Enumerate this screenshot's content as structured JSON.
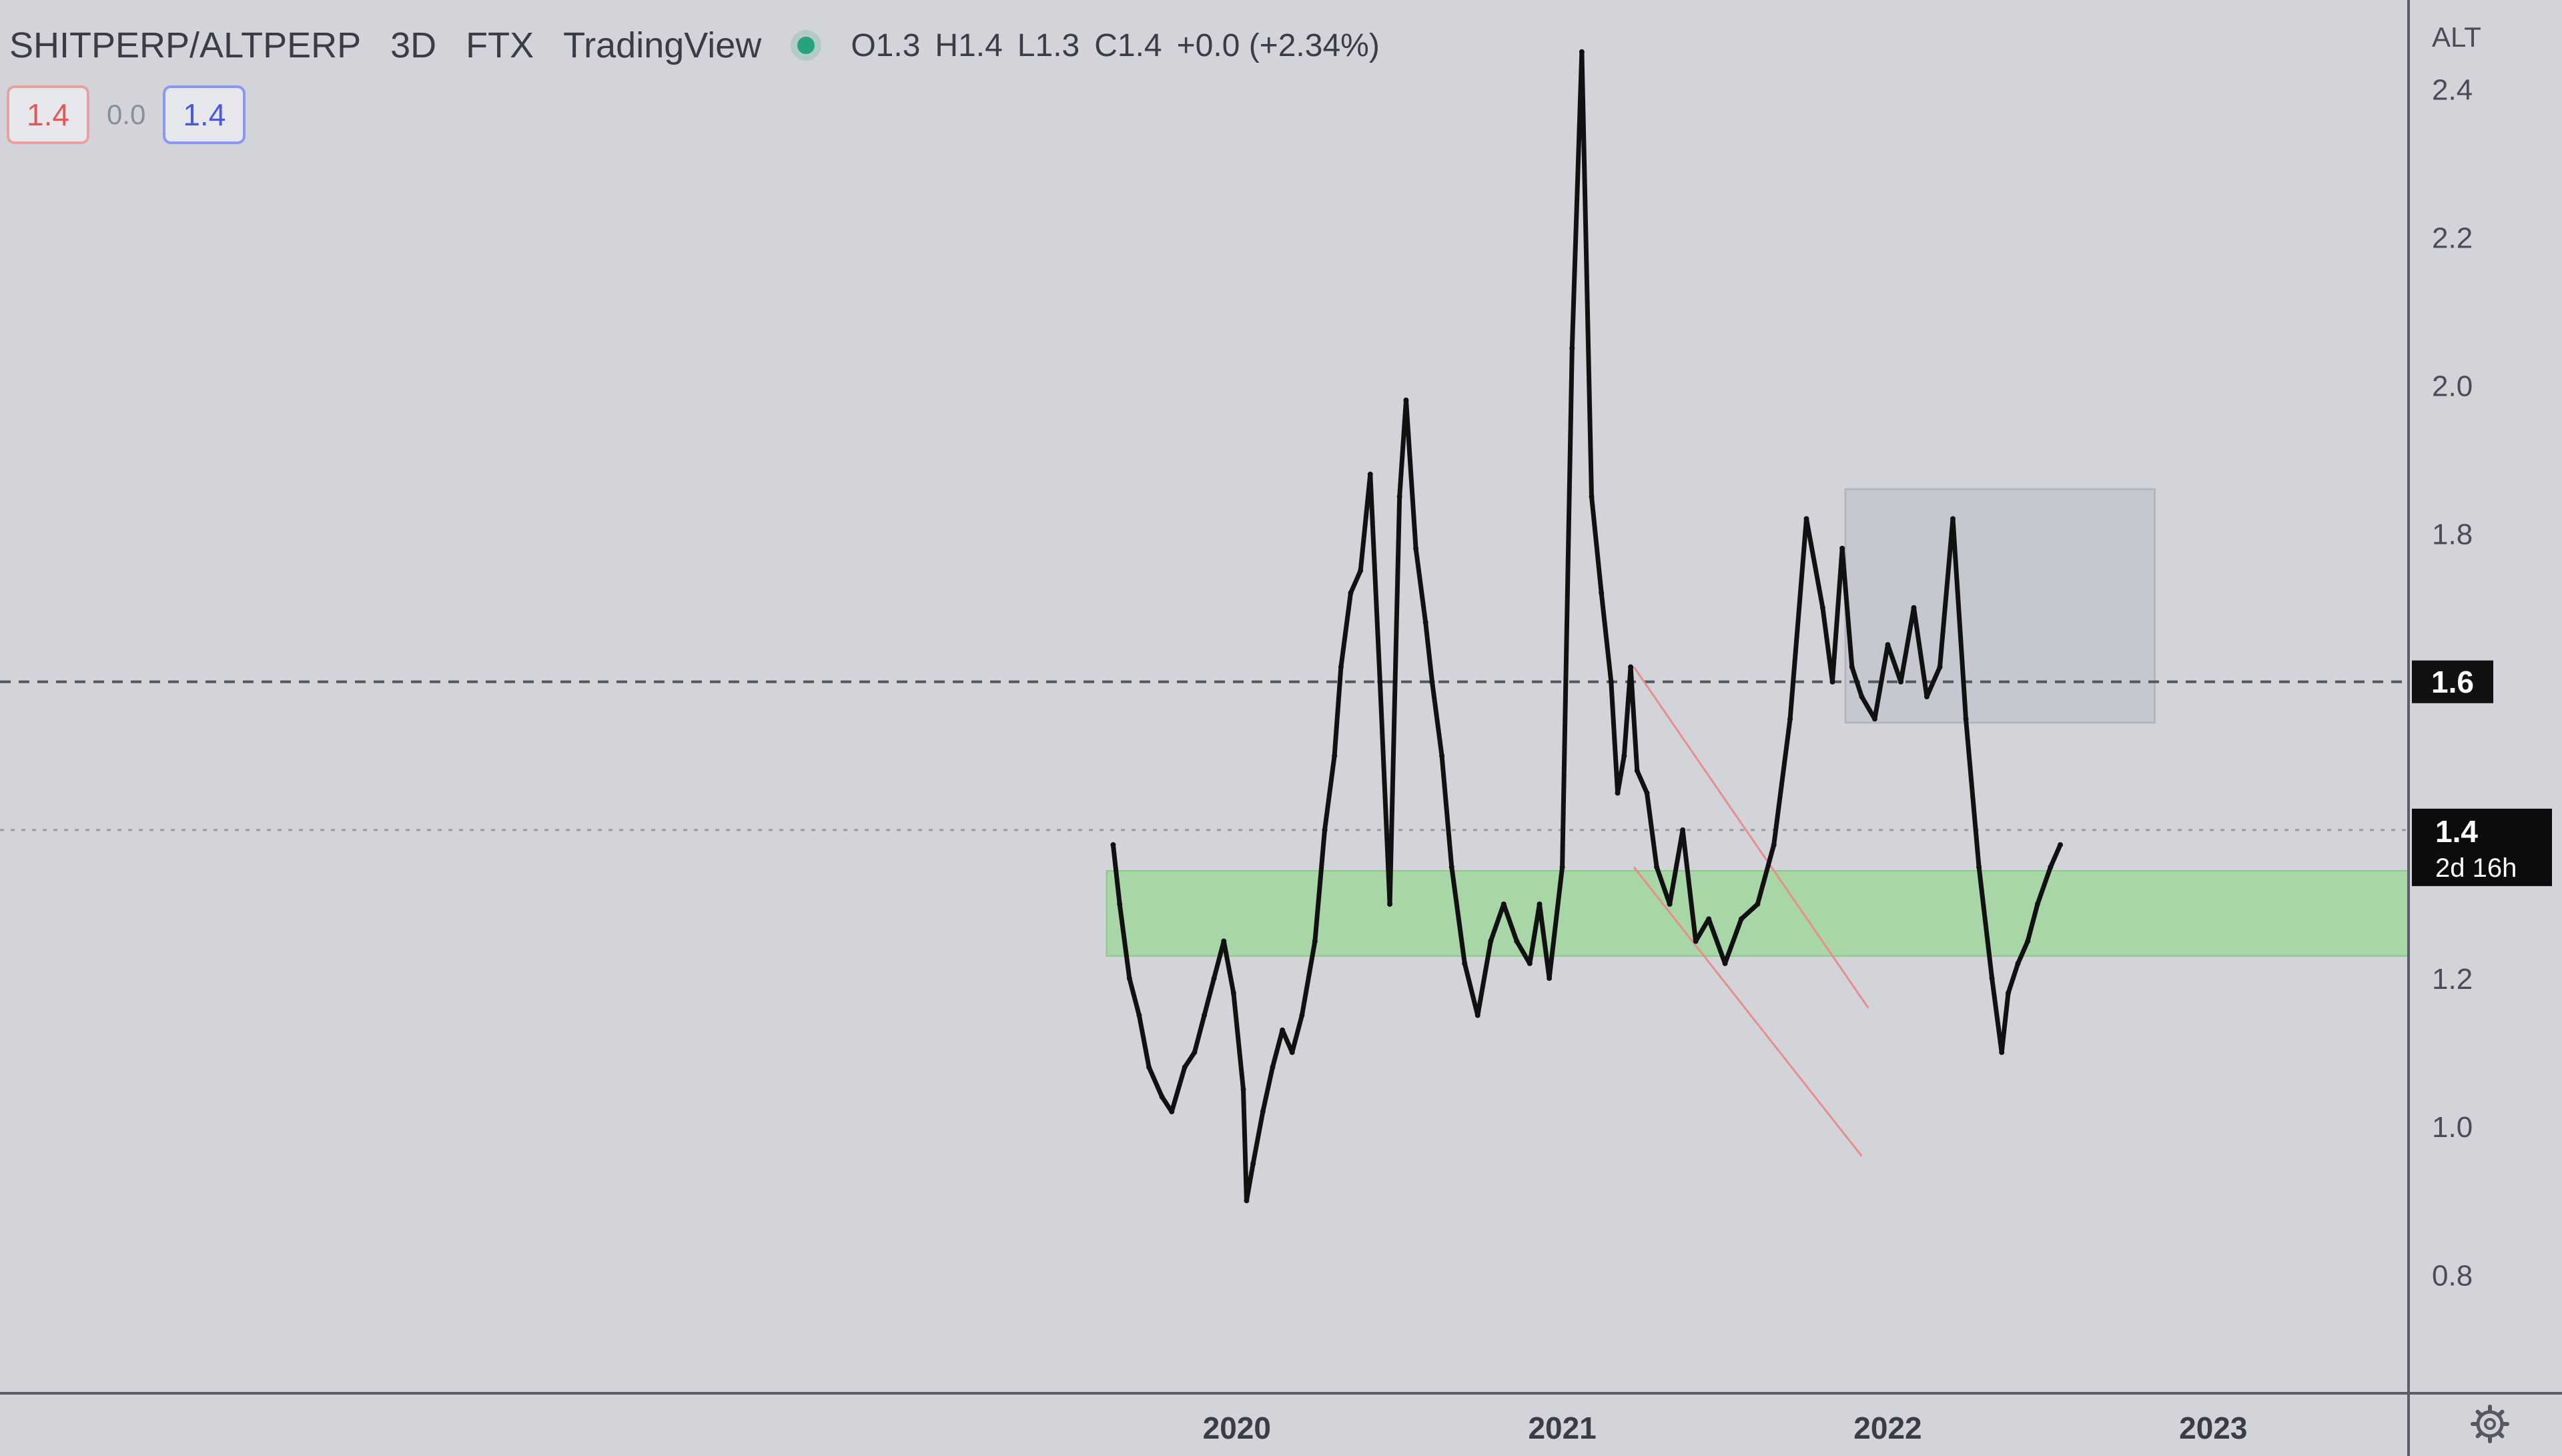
{
  "header": {
    "symbol": "SHITPERP/ALTPERP",
    "interval": "3D",
    "exchange": "FTX",
    "source": "TradingView",
    "ohlc": {
      "open": "O1.3",
      "high": "H1.4",
      "low": "L1.3",
      "close": "C1.4",
      "change": "+0.0 (+2.34%)"
    }
  },
  "price_boxes": {
    "sell": "1.4",
    "spread": "0.0",
    "buy": "1.4"
  },
  "colors": {
    "background": "#d2d4da",
    "price_line": "#111111",
    "support_zone": "#a9d6a6",
    "rect_zone": "#c6c8cf",
    "trendline": "#e58f8f",
    "status": "#25a37c"
  },
  "chart_data": {
    "type": "line",
    "title": "",
    "xlabel": "",
    "ylabel": "",
    "axis_unit_label": "ALT",
    "x_ticks": [
      "2020",
      "2021",
      "2022",
      "2023"
    ],
    "y_ticks": [
      0.8,
      1.0,
      1.2,
      1.4,
      1.6,
      1.8,
      2.0,
      2.2,
      2.4
    ],
    "ylim": [
      0.64,
      2.52
    ],
    "xlim": [
      2016.2,
      2023.6
    ],
    "series": [
      {
        "name": "",
        "x": [
          2019.62,
          2019.64,
          2019.67,
          2019.7,
          2019.73,
          2019.77,
          2019.8,
          2019.84,
          2019.87,
          2019.9,
          2019.93,
          2019.96,
          2019.99,
          2020.02,
          2020.03,
          2020.05,
          2020.08,
          2020.11,
          2020.14,
          2020.17,
          2020.2,
          2020.24,
          2020.27,
          2020.3,
          2020.32,
          2020.35,
          2020.38,
          2020.41,
          2020.44,
          2020.47,
          2020.5,
          2020.52,
          2020.55,
          2020.58,
          2020.6,
          2020.63,
          2020.66,
          2020.7,
          2020.74,
          2020.78,
          2020.82,
          2020.86,
          2020.9,
          2020.93,
          2020.96,
          2021.0,
          2021.03,
          2021.06,
          2021.09,
          2021.12,
          2021.15,
          2021.17,
          2021.19,
          2021.21,
          2021.23,
          2021.26,
          2021.29,
          2021.33,
          2021.37,
          2021.41,
          2021.45,
          2021.5,
          2021.55,
          2021.6,
          2021.65,
          2021.7,
          2021.75,
          2021.8,
          2021.83,
          2021.86,
          2021.89,
          2021.92,
          2021.96,
          2022.0,
          2022.04,
          2022.08,
          2022.12,
          2022.16,
          2022.2,
          2022.24,
          2022.28,
          2022.32,
          2022.35,
          2022.37,
          2022.4,
          2022.43,
          2022.46,
          2022.5,
          2022.53
        ],
        "y": [
          1.38,
          1.3,
          1.2,
          1.15,
          1.08,
          1.04,
          1.02,
          1.08,
          1.1,
          1.15,
          1.2,
          1.25,
          1.18,
          1.05,
          0.9,
          0.95,
          1.02,
          1.08,
          1.13,
          1.1,
          1.15,
          1.25,
          1.4,
          1.5,
          1.62,
          1.72,
          1.75,
          1.88,
          1.6,
          1.3,
          1.85,
          1.98,
          1.78,
          1.68,
          1.6,
          1.5,
          1.35,
          1.22,
          1.15,
          1.25,
          1.3,
          1.25,
          1.22,
          1.3,
          1.2,
          1.35,
          2.05,
          2.45,
          1.85,
          1.72,
          1.6,
          1.45,
          1.5,
          1.62,
          1.48,
          1.45,
          1.35,
          1.3,
          1.4,
          1.25,
          1.28,
          1.22,
          1.28,
          1.3,
          1.38,
          1.55,
          1.82,
          1.7,
          1.6,
          1.78,
          1.62,
          1.58,
          1.55,
          1.65,
          1.6,
          1.7,
          1.58,
          1.62,
          1.82,
          1.55,
          1.35,
          1.2,
          1.1,
          1.18,
          1.22,
          1.25,
          1.3,
          1.35,
          1.38
        ]
      }
    ],
    "horizontal_lines": [
      {
        "value": 1.6,
        "style": "dashed",
        "label": "1.6"
      },
      {
        "value": 1.4,
        "style": "dotted"
      }
    ],
    "current_price_label": {
      "value": "1.4",
      "countdown": "2d 16h"
    },
    "support_zone": {
      "x_start": 2019.6,
      "x_end": 2023.6,
      "y_low": 1.23,
      "y_high": 1.345
    },
    "rect_zone": {
      "x_start": 2021.87,
      "x_end": 2022.82,
      "y_low": 1.545,
      "y_high": 1.86
    },
    "trendlines": [
      {
        "x": [
          2021.22,
          2021.94
        ],
        "y": [
          1.62,
          1.16
        ]
      },
      {
        "x": [
          2021.22,
          2021.92
        ],
        "y": [
          1.35,
          0.96
        ]
      }
    ]
  }
}
